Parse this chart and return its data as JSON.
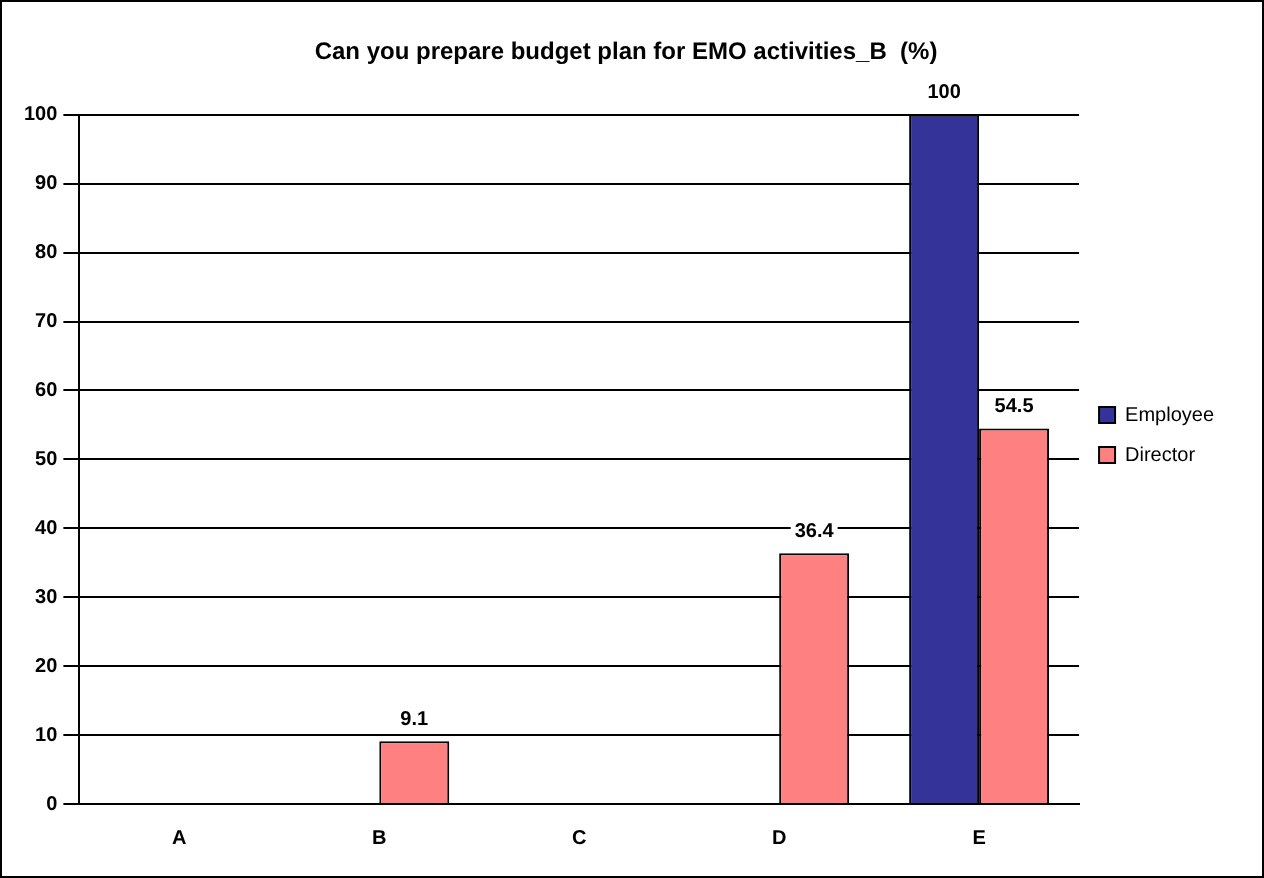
{
  "chart_data": {
    "type": "bar",
    "title": "Can you prepare budget plan for EMO activities_B  (%)",
    "categories": [
      "A",
      "B",
      "C",
      "D",
      "E"
    ],
    "series": [
      {
        "name": "Employee",
        "color": "#333399",
        "values": [
          0,
          0,
          0,
          0,
          100
        ],
        "value_labels": [
          null,
          null,
          null,
          null,
          "100"
        ]
      },
      {
        "name": "Director",
        "color": "#ff8080",
        "values": [
          0,
          9.1,
          0,
          36.4,
          54.5
        ],
        "value_labels": [
          null,
          "9.1",
          null,
          "36.4",
          "54.5"
        ]
      }
    ],
    "ylim": [
      0,
      100
    ],
    "yticks": [
      0,
      10,
      20,
      30,
      40,
      50,
      60,
      70,
      80,
      90,
      100
    ],
    "grid": "y",
    "legend": "right"
  }
}
